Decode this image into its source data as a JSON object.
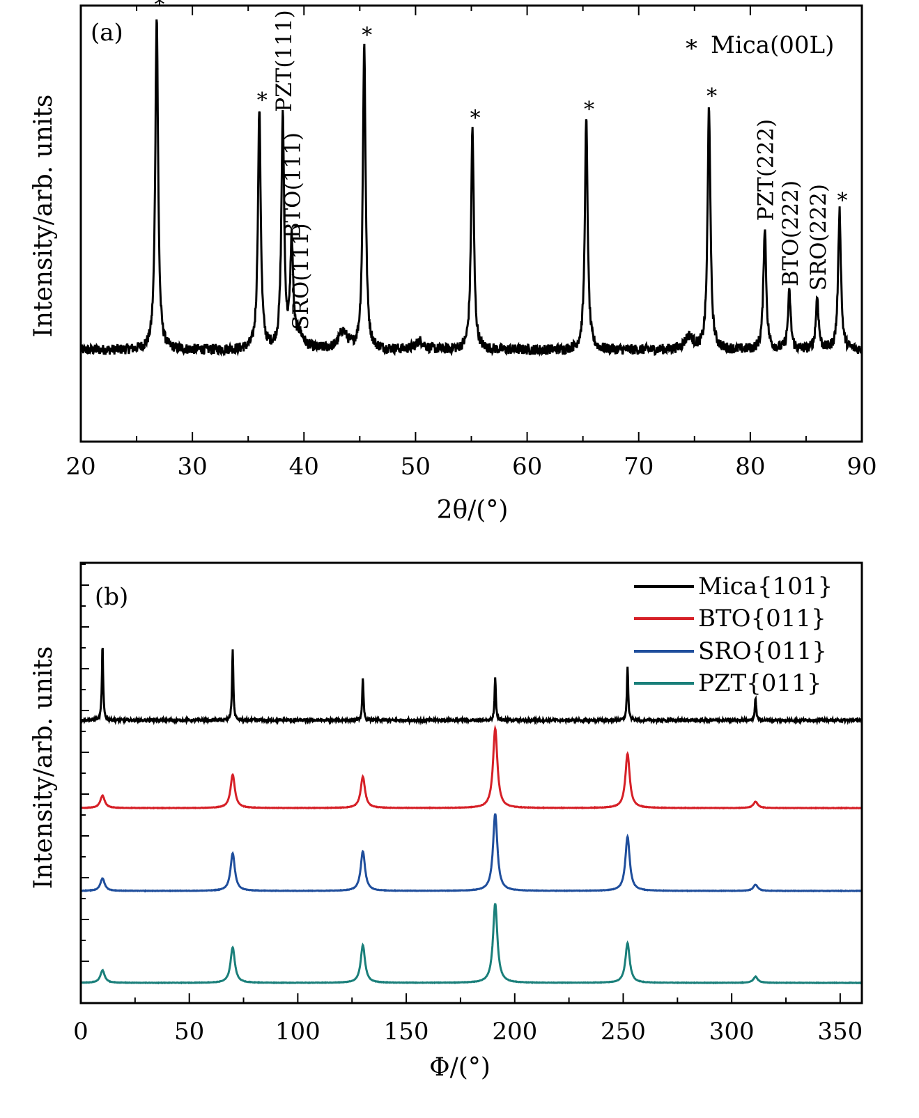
{
  "chart_data": [
    {
      "type": "line",
      "panel_label": "(a)",
      "xlabel": "2θ/(°)",
      "ylabel": "Intensity/arb. units",
      "xlim": [
        20,
        90
      ],
      "ylim": [
        0,
        1
      ],
      "x_ticks": [
        20,
        30,
        40,
        50,
        60,
        70,
        80,
        90
      ],
      "grid": false,
      "baseline": 0.21,
      "noise": 0.012,
      "series": [
        {
          "color": "#000000",
          "peaks": [
            {
              "x": 26.8,
              "h": 0.98
            },
            {
              "x": 36.0,
              "h": 0.76
            },
            {
              "x": 38.1,
              "h": 0.74
            },
            {
              "x": 38.9,
              "h": 0.45
            },
            {
              "x": 39.6,
              "h": 0.24
            },
            {
              "x": 43.5,
              "h": 0.25
            },
            {
              "x": 45.4,
              "h": 0.91
            },
            {
              "x": 50.4,
              "h": 0.23
            },
            {
              "x": 55.1,
              "h": 0.72
            },
            {
              "x": 65.3,
              "h": 0.74
            },
            {
              "x": 74.5,
              "h": 0.24
            },
            {
              "x": 76.3,
              "h": 0.77
            },
            {
              "x": 81.3,
              "h": 0.49
            },
            {
              "x": 83.5,
              "h": 0.34
            },
            {
              "x": 86.0,
              "h": 0.33
            },
            {
              "x": 88.0,
              "h": 0.53
            }
          ]
        }
      ],
      "annotations": [
        {
          "text": "*",
          "x": 26.8
        },
        {
          "text": "*",
          "x": 36.0
        },
        {
          "text": "PZT(111)",
          "x": 38.1
        },
        {
          "text": "BTO(111)",
          "x": 38.9
        },
        {
          "text": "SRO(111)",
          "x": 39.6
        },
        {
          "text": "*",
          "x": 45.4
        },
        {
          "text": "*",
          "x": 55.1
        },
        {
          "text": "*",
          "x": 65.3
        },
        {
          "text": "*",
          "x": 76.3
        },
        {
          "text": "PZT(222)",
          "x": 81.3
        },
        {
          "text": "BTO(222)",
          "x": 83.5
        },
        {
          "text": "SRO(222)",
          "x": 86.0
        },
        {
          "text": "*",
          "x": 88.0
        }
      ],
      "legend": {
        "marker": "*",
        "text": "Mica(00L)",
        "position": "top-right"
      }
    },
    {
      "type": "line",
      "panel_label": "(b)",
      "xlabel": "Φ/(°)",
      "ylabel": "Intensity/arb. units",
      "xlim": [
        0,
        360
      ],
      "x_ticks": [
        0,
        50,
        100,
        150,
        200,
        250,
        300,
        350
      ],
      "grid": false,
      "legend_position": "top-right",
      "series": [
        {
          "name": "Mica{101}",
          "color": "#000000",
          "peak_width": 0.35,
          "noise": 0.006,
          "peaks": [
            {
              "x": 10,
              "h": 0.36
            },
            {
              "x": 70,
              "h": 0.34
            },
            {
              "x": 130,
              "h": 0.2
            },
            {
              "x": 191,
              "h": 0.21
            },
            {
              "x": 252,
              "h": 0.26
            },
            {
              "x": 311,
              "h": 0.11
            }
          ]
        },
        {
          "name": "BTO{011}",
          "color": "#d62027",
          "peak_width": 1.2,
          "noise": 0.001,
          "peaks": [
            {
              "x": 10,
              "h": 0.06
            },
            {
              "x": 70,
              "h": 0.16
            },
            {
              "x": 130,
              "h": 0.15
            },
            {
              "x": 191,
              "h": 0.38
            },
            {
              "x": 252,
              "h": 0.26
            },
            {
              "x": 311,
              "h": 0.03
            }
          ]
        },
        {
          "name": "SRO{011}",
          "color": "#1f4e9c",
          "peak_width": 1.2,
          "noise": 0.001,
          "peaks": [
            {
              "x": 10,
              "h": 0.06
            },
            {
              "x": 70,
              "h": 0.18
            },
            {
              "x": 130,
              "h": 0.19
            },
            {
              "x": 191,
              "h": 0.37
            },
            {
              "x": 252,
              "h": 0.26
            },
            {
              "x": 311,
              "h": 0.03
            }
          ]
        },
        {
          "name": "PZT{011}",
          "color": "#1a7f7a",
          "peak_width": 1.2,
          "noise": 0.001,
          "peaks": [
            {
              "x": 10,
              "h": 0.06
            },
            {
              "x": 70,
              "h": 0.17
            },
            {
              "x": 130,
              "h": 0.18
            },
            {
              "x": 191,
              "h": 0.38
            },
            {
              "x": 252,
              "h": 0.19
            },
            {
              "x": 311,
              "h": 0.03
            }
          ]
        }
      ]
    }
  ]
}
